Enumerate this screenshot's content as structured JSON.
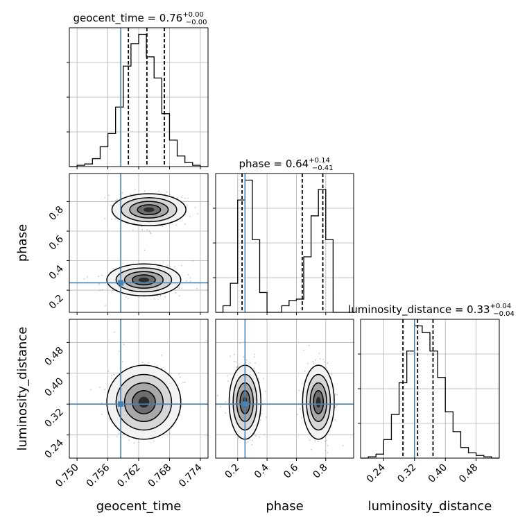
{
  "chart_data": {
    "type": "corner",
    "parameters": [
      "geocent_time",
      "phase",
      "luminosity_distance"
    ],
    "axis_labels": [
      "geocent_time",
      "phase",
      "luminosity_distance"
    ],
    "ticks": {
      "geocent_time": {
        "labels": [
          "0.750",
          "0.756",
          "0.762",
          "0.768",
          "0.774"
        ],
        "values": [
          0.75,
          0.756,
          0.762,
          0.768,
          0.774
        ]
      },
      "phase": {
        "labels": [
          "0.2",
          "0.4",
          "0.6",
          "0.8"
        ],
        "values": [
          0.2,
          0.4,
          0.6,
          0.8
        ]
      },
      "luminosity_distance": {
        "labels": [
          "0.24",
          "0.32",
          "0.40",
          "0.48"
        ],
        "values": [
          0.24,
          0.32,
          0.4,
          0.48
        ]
      }
    },
    "ranges": {
      "geocent_time": [
        0.7485,
        0.7755
      ],
      "phase": [
        0.05,
        0.99
      ],
      "luminosity_distance": [
        0.18,
        0.54
      ]
    },
    "truths": {
      "geocent_time": 0.7585,
      "phase": 0.25,
      "luminosity_distance": 0.32
    },
    "titles": [
      {
        "param": "geocent_time",
        "main": "geocent_time = 0.76",
        "plus": "+0.00",
        "minus": "−0.00"
      },
      {
        "param": "phase",
        "main": "phase = 0.64",
        "plus": "+0.14",
        "minus": "−0.41"
      },
      {
        "param": "luminosity_distance",
        "main": "luminosity_distance = 0.33",
        "plus": "+0.04",
        "minus": "−0.04"
      }
    ],
    "quantiles": {
      "geocent_time": [
        0.76,
        0.7636,
        0.767
      ],
      "phase": [
        0.23,
        0.64,
        0.78
      ],
      "luminosity_distance": [
        0.29,
        0.328,
        0.368
      ]
    },
    "histograms": {
      "geocent_time": {
        "edges": [
          0.7485,
          0.75,
          0.7515,
          0.753,
          0.7545,
          0.756,
          0.7575,
          0.759,
          0.7605,
          0.762,
          0.7635,
          0.765,
          0.7665,
          0.768,
          0.7695,
          0.771,
          0.7725,
          0.774,
          0.7755
        ],
        "counts": [
          0,
          1,
          2,
          6,
          15,
          25,
          45,
          76,
          93,
          100,
          83,
          67,
          40,
          20,
          8,
          3,
          1,
          0
        ]
      },
      "phase": {
        "edges": [
          0.05,
          0.1,
          0.15,
          0.2,
          0.25,
          0.3,
          0.35,
          0.4,
          0.45,
          0.5,
          0.55,
          0.6,
          0.65,
          0.7,
          0.75,
          0.8,
          0.85,
          0.9,
          0.95,
          0.99
        ],
        "counts": [
          0,
          5,
          22,
          85,
          100,
          55,
          15,
          0,
          0,
          5,
          9,
          10,
          42,
          73,
          93,
          55,
          0,
          0,
          0
        ]
      },
      "luminosity_distance": {
        "edges": [
          0.18,
          0.2,
          0.22,
          0.24,
          0.26,
          0.28,
          0.3,
          0.32,
          0.34,
          0.36,
          0.38,
          0.4,
          0.42,
          0.44,
          0.46,
          0.48,
          0.5,
          0.52,
          0.54
        ],
        "counts": [
          0,
          1,
          3,
          14,
          33,
          57,
          81,
          100,
          95,
          81,
          61,
          35,
          20,
          8,
          4,
          2,
          1,
          0
        ]
      }
    },
    "joint_modes": [
      {
        "x": "geocent_time",
        "y": "phase",
        "clusters": [
          {
            "cx": 0.764,
            "cy": 0.745,
            "sx": 0.003,
            "sy": 0.045
          },
          {
            "cx": 0.763,
            "cy": 0.27,
            "sx": 0.003,
            "sy": 0.045
          }
        ]
      },
      {
        "x": "geocent_time",
        "y": "luminosity_distance",
        "clusters": [
          {
            "cx": 0.763,
            "cy": 0.325,
            "sx": 0.003,
            "sy": 0.04
          }
        ]
      },
      {
        "x": "phase",
        "y": "luminosity_distance",
        "clusters": [
          {
            "cx": 0.25,
            "cy": 0.325,
            "sx": 0.045,
            "sy": 0.04
          },
          {
            "cx": 0.75,
            "cy": 0.325,
            "sx": 0.045,
            "sy": 0.04
          }
        ]
      }
    ],
    "colors": {
      "truth": "#4682b4",
      "hist": "#000000",
      "grid": "#b0b0b0",
      "scatter": "#7f7f7f"
    },
    "grid": true
  }
}
